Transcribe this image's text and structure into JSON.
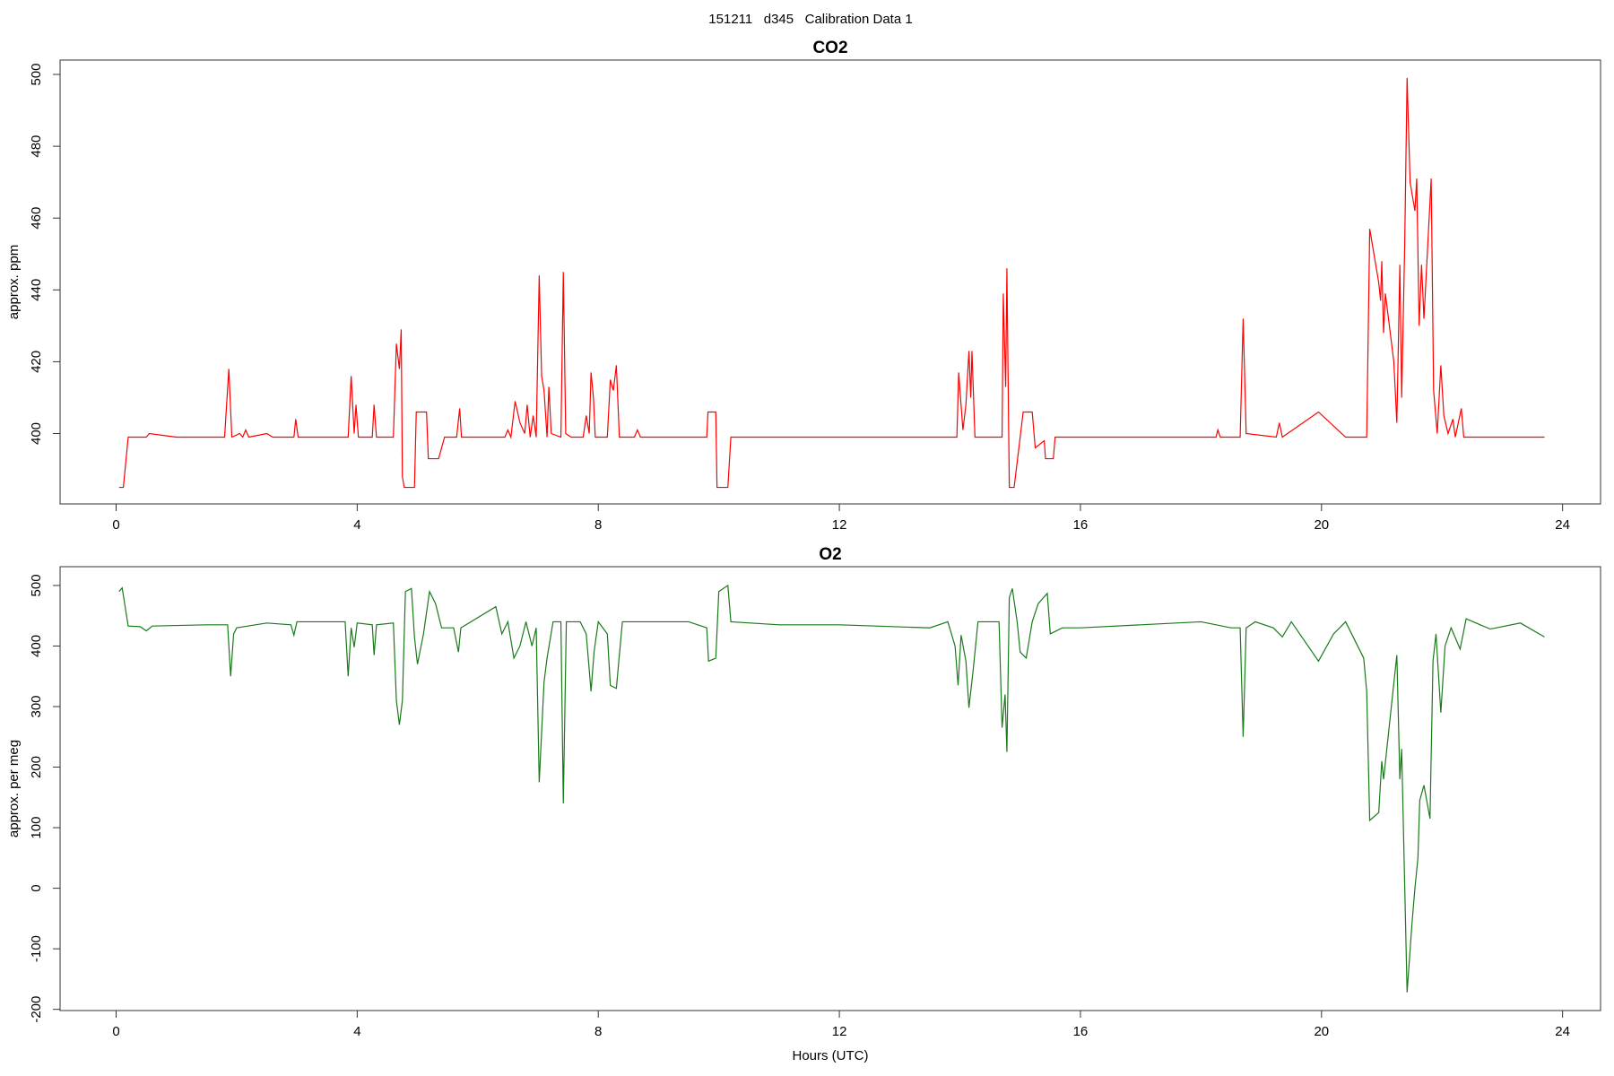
{
  "title": "151211   d345   Calibration Data 1",
  "chart_data": [
    {
      "type": "line",
      "title": "CO2",
      "ylabel": "approx. ppm",
      "color": "#ff0000",
      "xlim": [
        -0.93,
        24.63
      ],
      "xticks": [
        0,
        4,
        8,
        12,
        16,
        20,
        24
      ],
      "ylim": [
        380.4,
        504
      ],
      "yticks": [
        400,
        420,
        440,
        460,
        480,
        500
      ],
      "x": [
        0.05,
        0.12,
        0.2,
        0.3,
        0.5,
        0.55,
        1.0,
        1.8,
        1.87,
        1.92,
        2.05,
        2.1,
        2.15,
        2.2,
        2.5,
        2.6,
        2.95,
        2.98,
        3.02,
        3.85,
        3.9,
        3.95,
        3.98,
        4.02,
        4.25,
        4.28,
        4.32,
        4.6,
        4.65,
        4.7,
        4.73,
        4.75,
        4.78,
        4.95,
        4.98,
        5.15,
        5.18,
        5.35,
        5.45,
        5.65,
        5.7,
        5.73,
        6.45,
        6.5,
        6.55,
        6.62,
        6.7,
        6.78,
        6.82,
        6.87,
        6.92,
        6.97,
        7.02,
        7.06,
        7.1,
        7.15,
        7.18,
        7.22,
        7.38,
        7.42,
        7.46,
        7.55,
        7.75,
        7.8,
        7.85,
        7.88,
        7.92,
        7.95,
        8.15,
        8.2,
        8.25,
        8.3,
        8.35,
        8.6,
        8.65,
        8.7,
        9.5,
        9.8,
        9.82,
        9.95,
        9.97,
        10.15,
        10.2,
        12,
        13.95,
        13.98,
        14.05,
        14.1,
        14.15,
        14.18,
        14.2,
        14.25,
        14.7,
        14.72,
        14.76,
        14.78,
        14.82,
        14.9,
        15.0,
        15.05,
        15.2,
        15.25,
        15.4,
        15.42,
        15.55,
        15.58,
        16,
        18,
        18.25,
        18.28,
        18.32,
        18.65,
        18.7,
        18.75,
        19.25,
        19.3,
        19.35,
        19.95,
        20.4,
        20.75,
        20.8,
        20.95,
        20.98,
        21.0,
        21.03,
        21.06,
        21.2,
        21.25,
        21.3,
        21.33,
        21.38,
        21.42,
        21.47,
        21.55,
        21.58,
        21.62,
        21.66,
        21.7,
        21.82,
        21.86,
        21.92,
        21.98,
        22.03,
        22.1,
        22.18,
        22.22,
        22.32,
        22.36,
        22.6,
        23.5,
        23.7
      ],
      "values": [
        385,
        385,
        399,
        399,
        399,
        400,
        399,
        399,
        418,
        399,
        400,
        399,
        401,
        399,
        400,
        399,
        399,
        404,
        399,
        399,
        416,
        400,
        408,
        399,
        399,
        408,
        399,
        399,
        425,
        418,
        429,
        388,
        385,
        385,
        406,
        406,
        393,
        393,
        399,
        399,
        407,
        399,
        399,
        401,
        399,
        409,
        403,
        400,
        408,
        399,
        405,
        399,
        444,
        416,
        412,
        399,
        413,
        400,
        399,
        445,
        400,
        399,
        399,
        405,
        400,
        417,
        410,
        399,
        399,
        415,
        412,
        419,
        399,
        399,
        401,
        399,
        399,
        399,
        406,
        406,
        385,
        385,
        399,
        399,
        399,
        417,
        401,
        408,
        423,
        410,
        423,
        399,
        399,
        439,
        413,
        446,
        385,
        385,
        399,
        406,
        406,
        396,
        398,
        393,
        393,
        399,
        399,
        399,
        399,
        401,
        399,
        399,
        432,
        400,
        399,
        403,
        399,
        406,
        399,
        399,
        457,
        442,
        437,
        448,
        428,
        439,
        420,
        403,
        447,
        410,
        452,
        499,
        470,
        462,
        471,
        430,
        447,
        432,
        471,
        412,
        400,
        419,
        405,
        400,
        404,
        399,
        407,
        399,
        399,
        399,
        399
      ]
    },
    {
      "type": "line",
      "title": "O2",
      "ylabel": "approx. per meg",
      "xlabel": "Hours (UTC)",
      "color": "#1a7a1a",
      "xlim": [
        -0.93,
        24.63
      ],
      "xticks": [
        0,
        4,
        8,
        12,
        16,
        20,
        24
      ],
      "ylim": [
        -202,
        531
      ],
      "yticks": [
        -200,
        -100,
        0,
        100,
        200,
        300,
        400,
        500
      ],
      "x": [
        0.05,
        0.1,
        0.2,
        0.4,
        0.5,
        0.6,
        1.5,
        1.85,
        1.9,
        1.95,
        2.0,
        2.5,
        2.9,
        2.95,
        3.0,
        3.8,
        3.85,
        3.9,
        3.95,
        4.0,
        4.25,
        4.28,
        4.32,
        4.6,
        4.65,
        4.7,
        4.75,
        4.8,
        4.9,
        4.95,
        5.0,
        5.1,
        5.2,
        5.3,
        5.4,
        5.6,
        5.68,
        5.72,
        6.3,
        6.4,
        6.5,
        6.6,
        6.7,
        6.8,
        6.9,
        6.97,
        7.02,
        7.1,
        7.15,
        7.25,
        7.38,
        7.42,
        7.47,
        7.7,
        7.8,
        7.88,
        7.93,
        8.0,
        8.15,
        8.2,
        8.3,
        8.4,
        8.8,
        9.5,
        9.8,
        9.83,
        9.95,
        10.0,
        10.15,
        10.2,
        11,
        12,
        13.5,
        13.8,
        13.92,
        13.97,
        14.02,
        14.1,
        14.15,
        14.22,
        14.3,
        14.65,
        14.7,
        14.75,
        14.78,
        14.82,
        14.87,
        14.95,
        15.0,
        15.1,
        15.2,
        15.3,
        15.45,
        15.5,
        15.7,
        16,
        17,
        18,
        18.5,
        18.65,
        18.7,
        18.75,
        18.9,
        19.2,
        19.35,
        19.5,
        19.95,
        20.2,
        20.4,
        20.7,
        20.75,
        20.8,
        20.95,
        21.0,
        21.03,
        21.25,
        21.3,
        21.33,
        21.42,
        21.5,
        21.55,
        21.6,
        21.63,
        21.7,
        21.8,
        21.85,
        21.9,
        21.98,
        22.05,
        22.15,
        22.3,
        22.4,
        22.8,
        23.3,
        23.7
      ],
      "values": [
        490,
        496,
        433,
        432,
        425,
        433,
        435,
        435,
        350,
        420,
        430,
        438,
        435,
        418,
        440,
        440,
        350,
        430,
        398,
        438,
        435,
        385,
        435,
        438,
        310,
        270,
        310,
        490,
        495,
        415,
        370,
        420,
        490,
        470,
        430,
        430,
        390,
        430,
        465,
        420,
        440,
        380,
        400,
        440,
        400,
        430,
        175,
        340,
        380,
        440,
        440,
        140,
        440,
        440,
        420,
        325,
        390,
        440,
        420,
        335,
        330,
        440,
        440,
        440,
        430,
        375,
        380,
        490,
        500,
        440,
        435,
        435,
        430,
        440,
        400,
        335,
        418,
        375,
        298,
        360,
        440,
        440,
        265,
        320,
        225,
        480,
        495,
        440,
        390,
        380,
        440,
        470,
        487,
        420,
        430,
        430,
        435,
        440,
        430,
        430,
        250,
        430,
        440,
        430,
        415,
        440,
        375,
        420,
        440,
        380,
        325,
        112,
        125,
        210,
        180,
        385,
        180,
        230,
        -172,
        -60,
        0,
        50,
        145,
        170,
        115,
        375,
        420,
        290,
        400,
        430,
        395,
        445,
        428,
        438,
        415
      ]
    }
  ]
}
